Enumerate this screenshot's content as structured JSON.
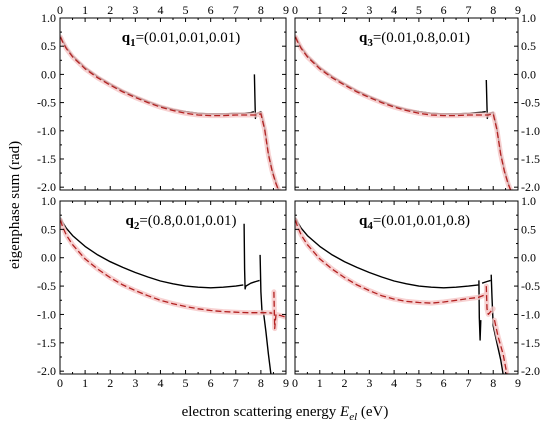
{
  "figure": {
    "ylabel": "eigenphase sum (rad)",
    "xlabel_prefix": "electron scattering energy ",
    "xlabel_symbol": "E",
    "xlabel_subscript": "el",
    "xlabel_suffix": " (eV)"
  },
  "colors": {
    "solid": "#000000",
    "dashed": "#b22222",
    "shade": "#f5c6c6",
    "frame": "#000000"
  },
  "chart_data": [
    {
      "type": "line",
      "panel_label": {
        "bold": "q",
        "sub": "1",
        "rest": "=(0.01,0.01,0.01)"
      },
      "xlim": [
        0,
        9
      ],
      "ylim": [
        -2.05,
        1.0
      ],
      "x_ticks": [
        "0",
        "1",
        "2",
        "3",
        "4",
        "5",
        "6",
        "7",
        "8",
        "9"
      ],
      "y_ticks": [
        "1.0",
        "0.5",
        "0.0",
        "-0.5",
        "-1.0",
        "-1.5",
        "-2.0"
      ],
      "x_tick_side": "top",
      "y_tick_side": "left",
      "series": [
        {
          "style": "solid",
          "segments": [
            {
              "x": [
                0.02,
                0.1,
                0.25,
                0.5,
                1.0,
                1.5,
                2.0,
                2.5,
                3.0,
                3.5,
                4.0,
                4.5,
                5.0,
                5.5,
                6.0,
                6.5,
                7.0,
                7.3,
                7.6,
                7.72
              ],
              "y": [
                0.68,
                0.6,
                0.48,
                0.33,
                0.12,
                -0.04,
                -0.17,
                -0.29,
                -0.39,
                -0.48,
                -0.56,
                -0.62,
                -0.66,
                -0.69,
                -0.7,
                -0.7,
                -0.69,
                -0.69,
                -0.68,
                -0.66
              ]
            },
            {
              "x": [
                7.74,
                7.76,
                7.78,
                7.82
              ],
              "y": [
                0.0,
                -0.4,
                -0.78,
                -0.7
              ]
            },
            {
              "x": [
                7.82,
                8.0,
                8.15,
                8.3,
                8.45,
                8.6,
                8.7
              ],
              "y": [
                -0.7,
                -0.66,
                -0.95,
                -1.4,
                -1.7,
                -1.92,
                -2.05
              ]
            }
          ]
        },
        {
          "style": "dashed",
          "segments": [
            {
              "x": [
                0.02,
                0.1,
                0.25,
                0.5,
                1.0,
                1.5,
                2.0,
                2.5,
                3.0,
                3.5,
                4.0,
                4.5,
                5.0,
                5.5,
                6.0,
                6.5,
                7.0,
                7.3,
                7.6,
                7.8,
                8.0,
                8.15,
                8.3,
                8.45,
                8.6,
                8.7
              ],
              "y": [
                0.66,
                0.58,
                0.46,
                0.31,
                0.1,
                -0.06,
                -0.19,
                -0.31,
                -0.41,
                -0.5,
                -0.58,
                -0.64,
                -0.69,
                -0.72,
                -0.73,
                -0.73,
                -0.72,
                -0.72,
                -0.72,
                -0.72,
                -0.7,
                -0.98,
                -1.42,
                -1.72,
                -1.94,
                -2.05
              ]
            }
          ]
        }
      ]
    },
    {
      "type": "line",
      "panel_label": {
        "bold": "q",
        "sub": "3",
        "rest": "=(0.01,0.8,0.01)"
      },
      "xlim": [
        0,
        9
      ],
      "ylim": [
        -2.05,
        1.0
      ],
      "x_ticks": [
        "0",
        "1",
        "2",
        "3",
        "4",
        "5",
        "6",
        "7",
        "8",
        "9"
      ],
      "y_ticks": [
        "1.0",
        "0.5",
        "0.0",
        "-0.5",
        "-1.0",
        "-1.5",
        "-2.0"
      ],
      "x_tick_side": "top",
      "y_tick_side": "right",
      "series": [
        {
          "style": "solid",
          "segments": [
            {
              "x": [
                0.02,
                0.1,
                0.25,
                0.5,
                1.0,
                1.5,
                2.0,
                2.5,
                3.0,
                3.5,
                4.0,
                4.5,
                5.0,
                5.5,
                6.0,
                6.5,
                7.0,
                7.3,
                7.55,
                7.7
              ],
              "y": [
                0.68,
                0.6,
                0.48,
                0.33,
                0.12,
                -0.04,
                -0.17,
                -0.29,
                -0.39,
                -0.48,
                -0.56,
                -0.62,
                -0.66,
                -0.69,
                -0.7,
                -0.7,
                -0.69,
                -0.68,
                -0.67,
                -0.66
              ]
            },
            {
              "x": [
                7.72,
                7.74,
                7.76,
                7.8
              ],
              "y": [
                -0.1,
                -0.45,
                -0.78,
                -0.7
              ]
            },
            {
              "x": [
                7.8,
                8.0,
                8.15,
                8.3,
                8.45,
                8.6,
                8.7
              ],
              "y": [
                -0.7,
                -0.67,
                -0.95,
                -1.4,
                -1.7,
                -1.92,
                -2.05
              ]
            }
          ]
        },
        {
          "style": "dashed",
          "segments": [
            {
              "x": [
                0.02,
                0.1,
                0.25,
                0.5,
                1.0,
                1.5,
                2.0,
                2.5,
                3.0,
                3.5,
                4.0,
                4.5,
                5.0,
                5.5,
                6.0,
                6.5,
                7.0,
                7.3,
                7.6,
                7.8,
                8.0,
                8.15,
                8.3,
                8.45,
                8.6,
                8.7
              ],
              "y": [
                0.66,
                0.58,
                0.46,
                0.31,
                0.1,
                -0.06,
                -0.19,
                -0.31,
                -0.41,
                -0.5,
                -0.58,
                -0.64,
                -0.69,
                -0.72,
                -0.73,
                -0.73,
                -0.72,
                -0.72,
                -0.72,
                -0.72,
                -0.7,
                -0.98,
                -1.42,
                -1.72,
                -1.94,
                -2.05
              ]
            }
          ]
        }
      ]
    },
    {
      "type": "line",
      "panel_label": {
        "bold": "q",
        "sub": "2",
        "rest": "=(0.8,0.01,0.01)"
      },
      "xlim": [
        0,
        9
      ],
      "ylim": [
        -2.05,
        1.0
      ],
      "x_ticks": [
        "0",
        "1",
        "2",
        "3",
        "4",
        "5",
        "6",
        "7",
        "8",
        "9"
      ],
      "y_ticks": [
        "1.0",
        "0.5",
        "0.0",
        "-0.5",
        "-1.0",
        "-1.5",
        "-2.0"
      ],
      "x_tick_side": "bottom",
      "y_tick_side": "left",
      "series": [
        {
          "style": "solid",
          "segments": [
            {
              "x": [
                0.02,
                0.1,
                0.25,
                0.5,
                1.0,
                1.5,
                2.0,
                2.5,
                3.0,
                3.5,
                4.0,
                4.5,
                5.0,
                5.5,
                6.0,
                6.5,
                7.0,
                7.3
              ],
              "y": [
                0.7,
                0.63,
                0.52,
                0.39,
                0.2,
                0.05,
                -0.07,
                -0.17,
                -0.26,
                -0.34,
                -0.41,
                -0.46,
                -0.5,
                -0.52,
                -0.53,
                -0.52,
                -0.5,
                -0.48
              ]
            },
            {
              "x": [
                7.33,
                7.35,
                7.37,
                7.4,
                7.6,
                7.8,
                7.95
              ],
              "y": [
                0.6,
                -0.2,
                -0.55,
                -0.5,
                -0.45,
                -0.42,
                -0.4
              ]
            },
            {
              "x": [
                7.97,
                8.0,
                8.05,
                8.1
              ],
              "y": [
                0.05,
                -0.6,
                -0.98,
                -0.95
              ]
            },
            {
              "x": [
                8.1,
                8.2,
                8.3,
                8.4
              ],
              "y": [
                -0.95,
                -1.3,
                -1.7,
                -2.05
              ]
            }
          ]
        },
        {
          "style": "dashed",
          "segments": [
            {
              "x": [
                0.02,
                0.1,
                0.25,
                0.5,
                1.0,
                1.5,
                2.0,
                2.5,
                3.0,
                3.5,
                4.0,
                4.5,
                5.0,
                5.5,
                6.0,
                6.5,
                7.0,
                7.5,
                8.0,
                8.3,
                8.5
              ],
              "y": [
                0.66,
                0.55,
                0.4,
                0.23,
                -0.02,
                -0.2,
                -0.35,
                -0.48,
                -0.58,
                -0.67,
                -0.75,
                -0.81,
                -0.86,
                -0.9,
                -0.93,
                -0.95,
                -0.96,
                -0.97,
                -0.97,
                -0.97,
                -0.98
              ]
            },
            {
              "x": [
                8.52,
                8.55,
                8.6,
                8.8,
                9.0
              ],
              "y": [
                -0.6,
                -1.25,
                -1.0,
                -1.02,
                -1.05
              ]
            }
          ]
        }
      ]
    },
    {
      "type": "line",
      "panel_label": {
        "bold": "q",
        "sub": "4",
        "rest": "=(0.01,0.01,0.8)"
      },
      "xlim": [
        0,
        9
      ],
      "ylim": [
        -2.05,
        1.0
      ],
      "x_ticks": [
        "0",
        "1",
        "2",
        "3",
        "4",
        "5",
        "6",
        "7",
        "8",
        "9"
      ],
      "y_ticks": [
        "1.0",
        "0.5",
        "0.0",
        "-0.5",
        "-1.0",
        "-1.5",
        "-2.0"
      ],
      "x_tick_side": "bottom",
      "y_tick_side": "right",
      "series": [
        {
          "style": "solid",
          "segments": [
            {
              "x": [
                0.02,
                0.1,
                0.25,
                0.5,
                1.0,
                1.5,
                2.0,
                2.5,
                3.0,
                3.5,
                4.0,
                4.5,
                5.0,
                5.5,
                6.0,
                6.5,
                7.0,
                7.4
              ],
              "y": [
                0.7,
                0.63,
                0.52,
                0.39,
                0.2,
                0.05,
                -0.07,
                -0.17,
                -0.26,
                -0.34,
                -0.41,
                -0.46,
                -0.5,
                -0.52,
                -0.53,
                -0.52,
                -0.5,
                -0.48
              ]
            },
            {
              "x": [
                7.42,
                7.44,
                7.47,
                7.5
              ],
              "y": [
                -0.4,
                -1.05,
                -1.45,
                -1.1
              ]
            },
            {
              "x": [
                7.55,
                7.75,
                7.9
              ],
              "y": [
                -0.45,
                -0.42,
                -0.4
              ]
            },
            {
              "x": [
                7.92,
                7.95,
                8.0,
                8.15,
                8.3,
                8.4
              ],
              "y": [
                -0.3,
                -0.7,
                -1.2,
                -1.5,
                -1.8,
                -2.05
              ]
            }
          ]
        },
        {
          "style": "dashed",
          "segments": [
            {
              "x": [
                0.02,
                0.1,
                0.25,
                0.5,
                1.0,
                1.5,
                2.0,
                2.5,
                3.0,
                3.5,
                4.0,
                4.5,
                5.0,
                5.5,
                6.0,
                6.5,
                7.0,
                7.4,
                7.7
              ],
              "y": [
                0.66,
                0.55,
                0.4,
                0.23,
                -0.02,
                -0.2,
                -0.35,
                -0.48,
                -0.58,
                -0.67,
                -0.73,
                -0.77,
                -0.79,
                -0.8,
                -0.78,
                -0.75,
                -0.72,
                -0.7,
                -0.65
              ]
            },
            {
              "x": [
                7.72,
                7.75,
                7.8,
                7.9,
                8.0
              ],
              "y": [
                -0.5,
                -0.9,
                -1.0,
                -0.95,
                -0.9
              ]
            },
            {
              "x": [
                8.05,
                8.2,
                8.4,
                8.55
              ],
              "y": [
                -1.1,
                -1.4,
                -1.7,
                -2.05
              ]
            }
          ]
        }
      ]
    }
  ]
}
